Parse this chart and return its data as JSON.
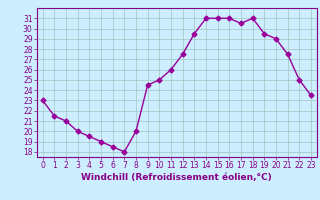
{
  "x": [
    0,
    1,
    2,
    3,
    4,
    5,
    6,
    7,
    8,
    9,
    10,
    11,
    12,
    13,
    14,
    15,
    16,
    17,
    18,
    19,
    20,
    21,
    22,
    23
  ],
  "y": [
    23.0,
    21.5,
    21.0,
    20.0,
    19.5,
    19.0,
    18.5,
    18.0,
    20.0,
    24.5,
    25.0,
    26.0,
    27.5,
    29.5,
    31.0,
    31.0,
    31.0,
    30.5,
    31.0,
    29.5,
    29.0,
    27.5,
    25.0,
    23.5
  ],
  "line_color": "#990099",
  "marker": "D",
  "markersize": 2.5,
  "linewidth": 1.0,
  "bg_color": "#cceeff",
  "grid_color": "#aacccc",
  "xlabel": "Windchill (Refroidissement éolien,°C)",
  "ylim": [
    17.5,
    32.0
  ],
  "xlim": [
    -0.5,
    23.5
  ],
  "yticks": [
    18,
    19,
    20,
    21,
    22,
    23,
    24,
    25,
    26,
    27,
    28,
    29,
    30,
    31
  ],
  "xticks": [
    0,
    1,
    2,
    3,
    4,
    5,
    6,
    7,
    8,
    9,
    10,
    11,
    12,
    13,
    14,
    15,
    16,
    17,
    18,
    19,
    20,
    21,
    22,
    23
  ],
  "tick_color": "#880088",
  "label_color": "#880088",
  "tick_fontsize": 5.5,
  "xlabel_fontsize": 6.5
}
